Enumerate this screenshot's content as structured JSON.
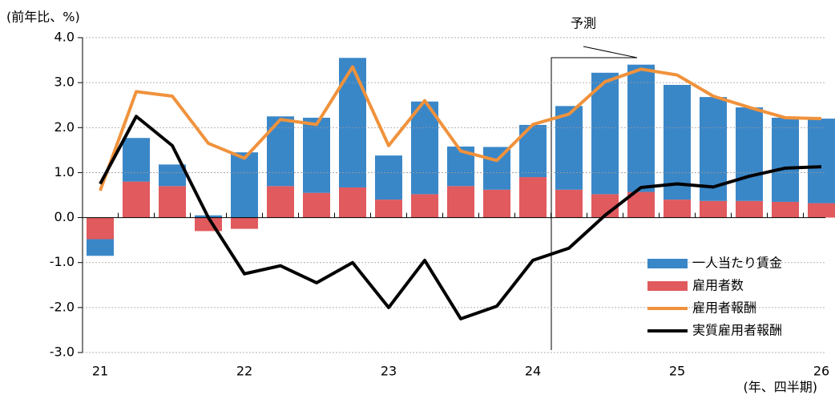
{
  "chart_data": {
    "type": "bar",
    "stacked": true,
    "y_label": "(前年比、%)",
    "x_label": "(年、四半期)",
    "forecast_label": "予測",
    "categories": [
      "21",
      null,
      null,
      null,
      "22",
      null,
      null,
      null,
      "23",
      null,
      null,
      null,
      "24",
      null,
      null,
      null,
      "25",
      null,
      null,
      null,
      "26"
    ],
    "ylim": [
      -3,
      4
    ],
    "yticks": [
      {
        "value": -3,
        "label": "-3.0"
      },
      {
        "value": -2,
        "label": "-2.0"
      },
      {
        "value": -1,
        "label": "-1.0"
      },
      {
        "value": 0,
        "label": "0.0"
      },
      {
        "value": 1,
        "label": "1.0"
      },
      {
        "value": 2,
        "label": "2.0"
      },
      {
        "value": 3,
        "label": "3.0"
      },
      {
        "value": 4,
        "label": "4.0"
      }
    ],
    "legend": "lower right",
    "series": [
      {
        "name": "一人当たり賃金",
        "type": "bar",
        "color": "#3a87c8",
        "values": [
          -0.37,
          0.97,
          0.48,
          0.05,
          1.45,
          1.55,
          1.67,
          2.88,
          0.98,
          2.06,
          0.88,
          0.95,
          1.16,
          1.86,
          2.7,
          2.83,
          2.55,
          2.31,
          2.08,
          1.87,
          1.88
        ]
      },
      {
        "name": "雇用者数",
        "type": "bar",
        "color": "#e05a5e",
        "values": [
          -0.48,
          0.8,
          0.7,
          -0.3,
          -0.25,
          0.7,
          0.55,
          0.67,
          0.4,
          0.52,
          0.7,
          0.62,
          0.9,
          0.62,
          0.52,
          0.57,
          0.4,
          0.37,
          0.37,
          0.35,
          0.32
        ]
      },
      {
        "name": "雇用者報酬",
        "type": "line",
        "color": "#f0923c",
        "values": [
          0.6,
          2.8,
          2.7,
          1.65,
          1.32,
          2.18,
          2.07,
          3.35,
          1.6,
          2.6,
          1.48,
          1.27,
          2.07,
          2.3,
          3.02,
          3.3,
          3.17,
          2.7,
          2.45,
          2.22,
          2.2
        ]
      },
      {
        "name": "実質雇用者報酬",
        "type": "line",
        "color": "#000000",
        "values": [
          0.75,
          2.25,
          1.6,
          0.0,
          -1.25,
          -1.07,
          -1.45,
          -1.0,
          -2.0,
          -0.95,
          -2.25,
          -1.97,
          -0.95,
          -0.68,
          0.05,
          0.67,
          0.75,
          0.68,
          0.92,
          1.1,
          1.13
        ]
      }
    ]
  }
}
